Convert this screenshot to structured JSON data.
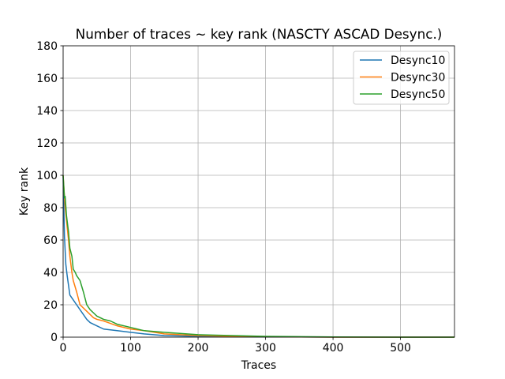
{
  "chart_data": {
    "type": "line",
    "title": "Number of traces ~ key rank (NASCTY ASCAD Desync.)",
    "xlabel": "Traces",
    "ylabel": "Key rank",
    "xlim": [
      0,
      580
    ],
    "ylim": [
      0,
      180
    ],
    "xticks": [
      0,
      100,
      200,
      300,
      400,
      500
    ],
    "yticks": [
      0,
      20,
      40,
      60,
      80,
      100,
      120,
      140,
      160,
      180
    ],
    "grid": true,
    "legend_position": "top-right",
    "series": [
      {
        "name": "Desync10",
        "color": "#1f77b4",
        "x": [
          0,
          2,
          4,
          6,
          8,
          10,
          15,
          20,
          25,
          30,
          35,
          40,
          50,
          60,
          70,
          80,
          100,
          120,
          150,
          200,
          250,
          300,
          400,
          500,
          580
        ],
        "y": [
          100,
          62,
          45,
          38,
          32,
          26,
          23,
          20,
          17,
          14,
          11,
          9,
          7,
          5,
          4.5,
          4,
          3,
          2,
          1,
          0.5,
          0.3,
          0.2,
          0,
          0,
          0
        ]
      },
      {
        "name": "Desync30",
        "color": "#ff7f0e",
        "x": [
          0,
          3,
          5,
          8,
          10,
          13,
          15,
          20,
          25,
          30,
          35,
          40,
          45,
          50,
          60,
          70,
          80,
          100,
          120,
          150,
          200,
          250,
          300,
          400,
          500,
          580
        ],
        "y": [
          100,
          80,
          72,
          60,
          50,
          40,
          35,
          28,
          20,
          18,
          16,
          14,
          12,
          11,
          10,
          8.5,
          7,
          5,
          4,
          2,
          1,
          0.5,
          0.3,
          0,
          0,
          0
        ]
      },
      {
        "name": "Desync50",
        "color": "#2ca02c",
        "x": [
          0,
          2,
          3,
          5,
          8,
          10,
          13,
          15,
          18,
          20,
          25,
          30,
          35,
          40,
          45,
          50,
          60,
          70,
          80,
          100,
          120,
          150,
          200,
          250,
          300,
          400,
          500,
          580
        ],
        "y": [
          100,
          86,
          87,
          75,
          65,
          55,
          50,
          42,
          40,
          38,
          35,
          28,
          20,
          17,
          15,
          13,
          11,
          10,
          8,
          6,
          4,
          3,
          1.5,
          1,
          0.5,
          0.1,
          0,
          0
        ]
      }
    ]
  }
}
